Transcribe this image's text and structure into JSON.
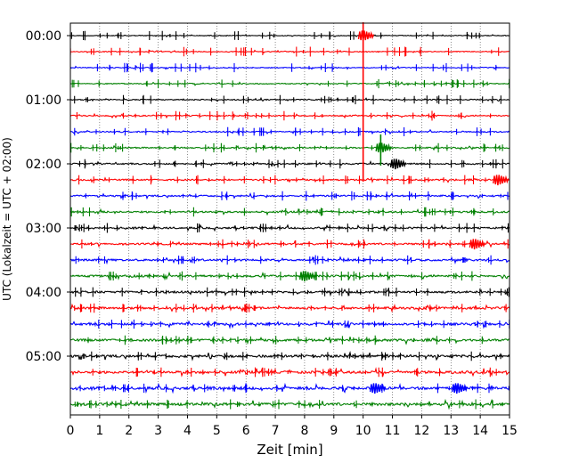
{
  "chart_data": {
    "type": "line",
    "title": "",
    "xlabel": "Zeit  [min]",
    "ylabel": "UTC (Lokalzeit = UTC + 02:00)",
    "xlim": [
      0,
      15
    ],
    "x_ticks": [
      0,
      1,
      2,
      3,
      4,
      5,
      6,
      7,
      8,
      9,
      10,
      11,
      12,
      13,
      14,
      15
    ],
    "x_tick_labels": [
      "0",
      "1",
      "2",
      "3",
      "4",
      "5",
      "6",
      "7",
      "8",
      "9",
      "10",
      "11",
      "12",
      "13",
      "14",
      "15"
    ],
    "y_tick_labels": [
      "00:00",
      "01:00",
      "02:00",
      "03:00",
      "04:00",
      "05:00"
    ],
    "grid": "vertical dotted",
    "trace_colors": [
      "#000000",
      "#ff0000",
      "#0000ff",
      "#008000"
    ],
    "traces": [
      {
        "start": "00:00",
        "color": "#000000"
      },
      {
        "start": "00:15",
        "color": "#ff0000"
      },
      {
        "start": "00:30",
        "color": "#0000ff"
      },
      {
        "start": "00:45",
        "color": "#008000"
      },
      {
        "start": "01:00",
        "color": "#000000"
      },
      {
        "start": "01:15",
        "color": "#ff0000"
      },
      {
        "start": "01:30",
        "color": "#0000ff"
      },
      {
        "start": "01:45",
        "color": "#008000"
      },
      {
        "start": "02:00",
        "color": "#000000"
      },
      {
        "start": "02:15",
        "color": "#ff0000"
      },
      {
        "start": "02:30",
        "color": "#0000ff"
      },
      {
        "start": "02:45",
        "color": "#008000"
      },
      {
        "start": "03:00",
        "color": "#000000"
      },
      {
        "start": "03:15",
        "color": "#ff0000"
      },
      {
        "start": "03:30",
        "color": "#0000ff"
      },
      {
        "start": "03:45",
        "color": "#008000"
      },
      {
        "start": "04:00",
        "color": "#000000"
      },
      {
        "start": "04:15",
        "color": "#ff0000"
      },
      {
        "start": "04:30",
        "color": "#0000ff"
      },
      {
        "start": "04:45",
        "color": "#008000"
      },
      {
        "start": "05:00",
        "color": "#000000"
      },
      {
        "start": "05:15",
        "color": "#ff0000"
      },
      {
        "start": "05:30",
        "color": "#0000ff"
      },
      {
        "start": "05:45",
        "color": "#008000"
      }
    ],
    "events": [
      {
        "trace": 0,
        "minute": 10.0,
        "color": "#ff0000",
        "extent_traces": 9
      },
      {
        "trace": 7,
        "minute": 10.6,
        "color": "#008000",
        "extent_traces": 1
      },
      {
        "trace": 8,
        "minute": 11.1,
        "color": "#000000",
        "extent_traces": 0
      },
      {
        "trace": 9,
        "minute": 14.6,
        "color": "#ff0000",
        "extent_traces": 0
      },
      {
        "trace": 13,
        "minute": 13.8,
        "color": "#ff0000",
        "extent_traces": 0
      },
      {
        "trace": 15,
        "minute": 8.0,
        "color": "#008000",
        "extent_traces": 0
      },
      {
        "trace": 22,
        "minute": 10.4,
        "color": "#0000ff",
        "extent_traces": 0
      },
      {
        "trace": 22,
        "minute": 13.2,
        "color": "#0000ff",
        "extent_traces": 0
      }
    ]
  }
}
